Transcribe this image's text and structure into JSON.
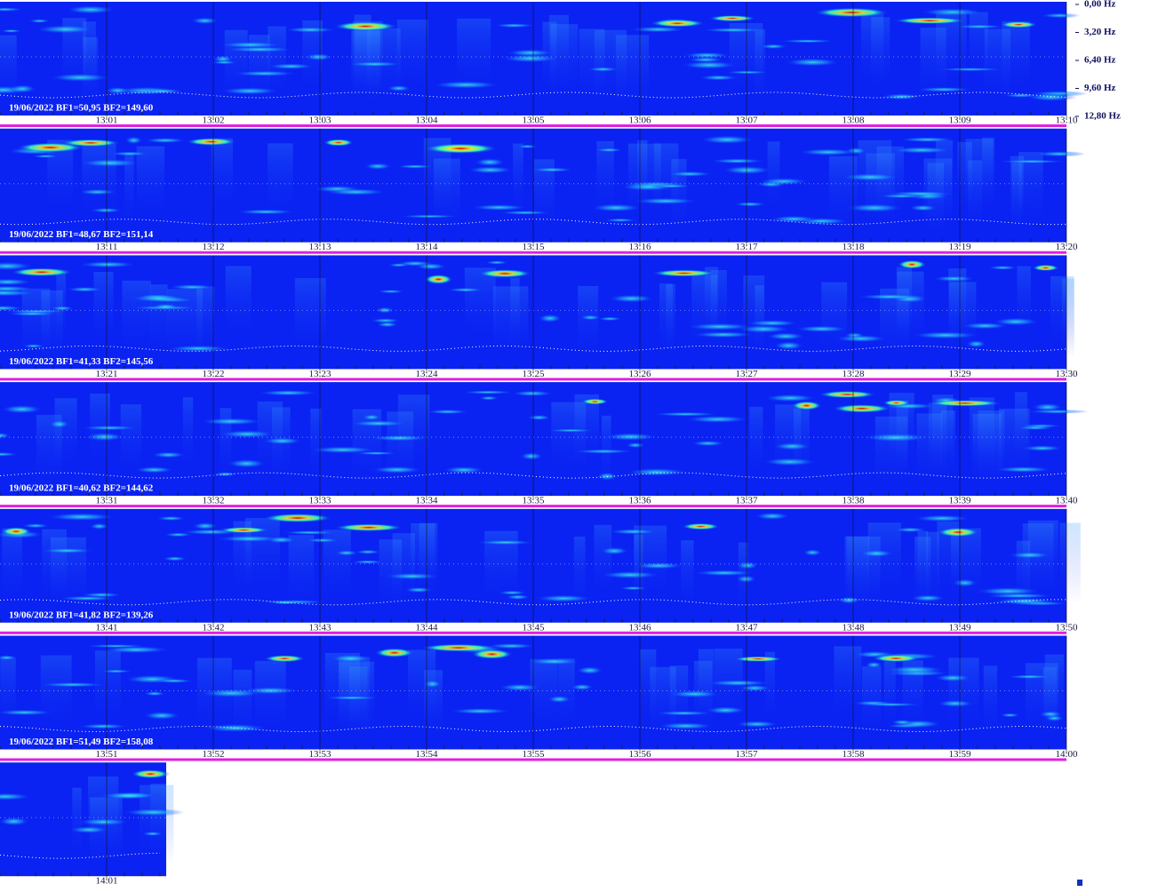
{
  "frequency_labels": [
    "0,00 Hz",
    "3,20 Hz",
    "6,40 Hz",
    "9,60 Hz",
    "12,80 Hz"
  ],
  "rows": [
    {
      "caption": "19/06/2022 BF1=50,95 BF2=149,60",
      "times": [
        "13:01",
        "13:02",
        "13:03",
        "13:04",
        "13:05",
        "13:06",
        "13:07",
        "13:08",
        "13:09",
        "13:10"
      ]
    },
    {
      "caption": "19/06/2022 BF1=48,67 BF2=151,14",
      "times": [
        "13:11",
        "13:12",
        "13:13",
        "13:14",
        "13:15",
        "13:16",
        "13:17",
        "13:18",
        "13:19",
        "13:20"
      ]
    },
    {
      "caption": "19/06/2022 BF1=41,33 BF2=145,56",
      "times": [
        "13:21",
        "13:22",
        "13:23",
        "13:24",
        "13:25",
        "13:26",
        "13:27",
        "13:28",
        "13:29",
        "13:30"
      ]
    },
    {
      "caption": "19/06/2022 BF1=40,62 BF2=144,62",
      "times": [
        "13:31",
        "13:32",
        "13:33",
        "13:34",
        "13:35",
        "13:36",
        "13:37",
        "13:38",
        "13:39",
        "13:40"
      ]
    },
    {
      "caption": "19/06/2022 BF1=41,82 BF2=139,26",
      "times": [
        "13:41",
        "13:42",
        "13:43",
        "13:44",
        "13:45",
        "13:46",
        "13:47",
        "13:48",
        "13:49",
        "13:50"
      ]
    },
    {
      "caption": "19/06/2022 BF1=51,49 BF2=158,08",
      "times": [
        "13:51",
        "13:52",
        "13:53",
        "13:54",
        "13:55",
        "13:56",
        "13:57",
        "13:58",
        "13:59",
        "14:00"
      ]
    },
    {
      "times": [
        "14:01"
      ]
    }
  ]
}
